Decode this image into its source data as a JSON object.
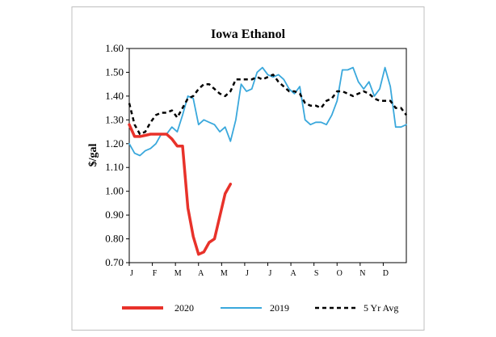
{
  "chart_data": {
    "type": "line",
    "title": "Iowa Ethanol",
    "ylabel": "$/gal",
    "xlabel": "",
    "ylim": [
      0.7,
      1.6
    ],
    "yticks": [
      "0.70",
      "0.80",
      "0.90",
      "1.00",
      "1.10",
      "1.20",
      "1.30",
      "1.40",
      "1.50",
      "1.60"
    ],
    "x_months": [
      "J",
      "F",
      "M",
      "A",
      "M",
      "J",
      "J",
      "A",
      "S",
      "O",
      "N",
      "D"
    ],
    "x_unit": "week",
    "grid": false,
    "legend_position": "bottom",
    "series": [
      {
        "name": "2020",
        "color": "#e8322a",
        "style": "solid",
        "x": [
          1,
          2,
          3,
          4,
          5,
          6,
          7,
          8,
          9,
          10,
          11,
          12,
          13,
          14,
          15,
          16,
          17,
          18,
          19,
          20,
          21
        ],
        "values": [
          1.28,
          1.23,
          1.23,
          1.235,
          1.24,
          1.24,
          1.24,
          1.24,
          1.22,
          1.19,
          1.19,
          0.93,
          0.81,
          0.735,
          0.745,
          0.785,
          0.8,
          0.895,
          0.99,
          1.03,
          null
        ]
      },
      {
        "name": "2019",
        "color": "#3aa8dc",
        "style": "solid",
        "x": [
          1,
          2,
          3,
          4,
          5,
          6,
          7,
          8,
          9,
          10,
          11,
          12,
          13,
          14,
          15,
          16,
          17,
          18,
          19,
          20,
          21,
          22,
          23,
          24,
          25,
          26,
          27,
          28,
          29,
          30,
          31,
          32,
          33,
          34,
          35,
          36,
          37,
          38,
          39,
          40,
          41,
          42,
          43,
          44,
          45,
          46,
          47,
          48,
          49,
          50,
          51,
          52,
          53
        ],
        "values": [
          1.2,
          1.16,
          1.15,
          1.17,
          1.18,
          1.2,
          1.24,
          1.24,
          1.27,
          1.25,
          1.32,
          1.4,
          1.39,
          1.28,
          1.3,
          1.29,
          1.28,
          1.25,
          1.27,
          1.21,
          1.3,
          1.45,
          1.42,
          1.43,
          1.5,
          1.52,
          1.49,
          1.48,
          1.49,
          1.47,
          1.43,
          1.41,
          1.44,
          1.3,
          1.28,
          1.29,
          1.29,
          1.28,
          1.32,
          1.38,
          1.51,
          1.51,
          1.52,
          1.46,
          1.43,
          1.46,
          1.4,
          1.43,
          1.52,
          1.44,
          1.27,
          1.27,
          1.28
        ]
      },
      {
        "name": "5 Yr Avg",
        "color": "#000000",
        "style": "dashed",
        "x": [
          1,
          2,
          3,
          4,
          5,
          6,
          7,
          8,
          9,
          10,
          11,
          12,
          13,
          14,
          15,
          16,
          17,
          18,
          19,
          20,
          21,
          22,
          23,
          24,
          25,
          26,
          27,
          28,
          29,
          30,
          31,
          32,
          33,
          34,
          35,
          36,
          37,
          38,
          39,
          40,
          41,
          42,
          43,
          44,
          45,
          46,
          47,
          48,
          49,
          50,
          51,
          52,
          53
        ],
        "values": [
          1.37,
          1.28,
          1.24,
          1.25,
          1.29,
          1.32,
          1.33,
          1.33,
          1.34,
          1.31,
          1.35,
          1.39,
          1.4,
          1.43,
          1.45,
          1.45,
          1.43,
          1.41,
          1.4,
          1.42,
          1.47,
          1.47,
          1.47,
          1.47,
          1.48,
          1.47,
          1.48,
          1.49,
          1.46,
          1.44,
          1.42,
          1.42,
          1.41,
          1.37,
          1.36,
          1.36,
          1.35,
          1.38,
          1.39,
          1.42,
          1.42,
          1.41,
          1.4,
          1.41,
          1.42,
          1.41,
          1.39,
          1.38,
          1.38,
          1.38,
          1.35,
          1.35,
          1.32
        ]
      }
    ]
  }
}
